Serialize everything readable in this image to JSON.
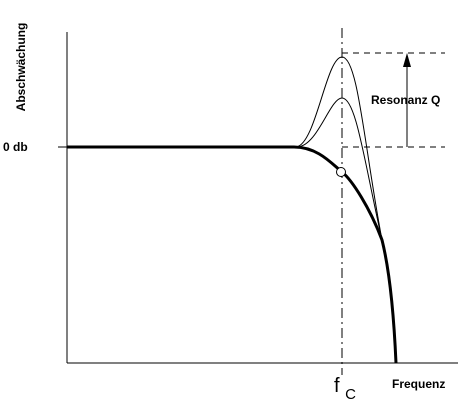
{
  "labels": {
    "y_axis": "Abschwächung",
    "zero_db": "0 db",
    "resonance": "Resonanz Q",
    "x_axis": "Frequenz",
    "cutoff_base": "f",
    "cutoff_sub": "C"
  }
}
